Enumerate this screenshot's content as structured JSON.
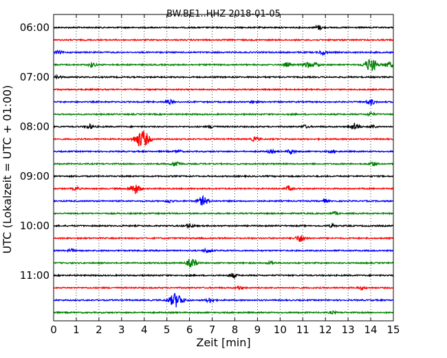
{
  "chart_data": {
    "type": "line",
    "title": "BW.BE1..HHZ 2018-01-05",
    "xlabel": "Zeit  [min]",
    "ylabel": "UTC (Lokalzeit = UTC + 01:00)",
    "xlim": [
      0,
      15
    ],
    "x_ticks": [
      "0",
      "1",
      "2",
      "3",
      "4",
      "5",
      "6",
      "7",
      "8",
      "9",
      "10",
      "11",
      "12",
      "13",
      "14",
      "15"
    ],
    "y_tick_labels": [
      "06:00",
      "07:00",
      "08:00",
      "09:00",
      "10:00",
      "11:00"
    ],
    "grid": "vertical dotted",
    "colors": [
      "#000000",
      "#ff0000",
      "#0000ff",
      "#008000"
    ],
    "series": [
      {
        "start": "06:00",
        "color": "#000000",
        "events": [
          [
            11.7,
            3
          ]
        ]
      },
      {
        "start": "06:15",
        "color": "#ff0000",
        "events": []
      },
      {
        "start": "06:30",
        "color": "#0000ff",
        "events": [
          [
            0.2,
            2
          ],
          [
            11.9,
            3
          ]
        ]
      },
      {
        "start": "06:45",
        "color": "#008000",
        "events": [
          [
            1.7,
            3
          ],
          [
            10.3,
            3
          ],
          [
            11.2,
            4
          ],
          [
            11.6,
            2.5
          ],
          [
            14.0,
            9
          ],
          [
            14.8,
            4
          ]
        ]
      },
      {
        "start": "07:00",
        "color": "#000000",
        "events": [
          [
            0.2,
            2
          ]
        ]
      },
      {
        "start": "07:15",
        "color": "#ff0000",
        "events": []
      },
      {
        "start": "07:30",
        "color": "#0000ff",
        "events": [
          [
            5.1,
            3
          ],
          [
            8.8,
            2
          ],
          [
            14.0,
            4
          ]
        ]
      },
      {
        "start": "07:45",
        "color": "#008000",
        "events": [
          [
            14.0,
            2
          ]
        ]
      },
      {
        "start": "08:00",
        "color": "#000000",
        "events": [
          [
            1.6,
            3
          ],
          [
            7.0,
            2
          ],
          [
            11.1,
            2
          ],
          [
            13.3,
            5
          ],
          [
            14.1,
            2
          ]
        ]
      },
      {
        "start": "08:15",
        "color": "#ff0000",
        "events": [
          [
            3.9,
            12
          ],
          [
            8.9,
            3
          ]
        ]
      },
      {
        "start": "08:30",
        "color": "#0000ff",
        "events": [
          [
            5.5,
            2
          ],
          [
            9.6,
            2
          ],
          [
            10.5,
            3
          ],
          [
            12.3,
            2
          ]
        ]
      },
      {
        "start": "08:45",
        "color": "#008000",
        "events": [
          [
            5.4,
            4
          ],
          [
            14.1,
            3
          ]
        ]
      },
      {
        "start": "09:00",
        "color": "#000000",
        "events": []
      },
      {
        "start": "09:15",
        "color": "#ff0000",
        "events": [
          [
            1.0,
            2
          ],
          [
            3.6,
            7
          ],
          [
            10.4,
            3
          ]
        ]
      },
      {
        "start": "09:30",
        "color": "#0000ff",
        "events": [
          [
            5.1,
            2
          ],
          [
            6.6,
            6
          ],
          [
            12.0,
            2
          ]
        ]
      },
      {
        "start": "09:45",
        "color": "#008000",
        "events": [
          [
            12.4,
            2
          ]
        ]
      },
      {
        "start": "10:00",
        "color": "#000000",
        "events": [
          [
            6.0,
            3
          ],
          [
            12.3,
            2
          ]
        ]
      },
      {
        "start": "10:15",
        "color": "#ff0000",
        "events": [
          [
            10.9,
            5
          ]
        ]
      },
      {
        "start": "10:30",
        "color": "#0000ff",
        "events": [
          [
            0.8,
            2
          ],
          [
            6.8,
            3
          ]
        ]
      },
      {
        "start": "10:45",
        "color": "#008000",
        "events": [
          [
            6.1,
            6
          ],
          [
            9.6,
            2
          ]
        ]
      },
      {
        "start": "11:00",
        "color": "#000000",
        "events": [
          [
            7.9,
            3
          ]
        ]
      },
      {
        "start": "11:15",
        "color": "#ff0000",
        "events": [
          [
            8.2,
            2
          ],
          [
            13.6,
            2
          ]
        ]
      },
      {
        "start": "11:30",
        "color": "#0000ff",
        "events": [
          [
            5.4,
            10
          ],
          [
            6.9,
            3
          ]
        ]
      },
      {
        "start": "11:45",
        "color": "#008000",
        "events": [
          [
            12.3,
            1.5
          ]
        ]
      }
    ]
  }
}
